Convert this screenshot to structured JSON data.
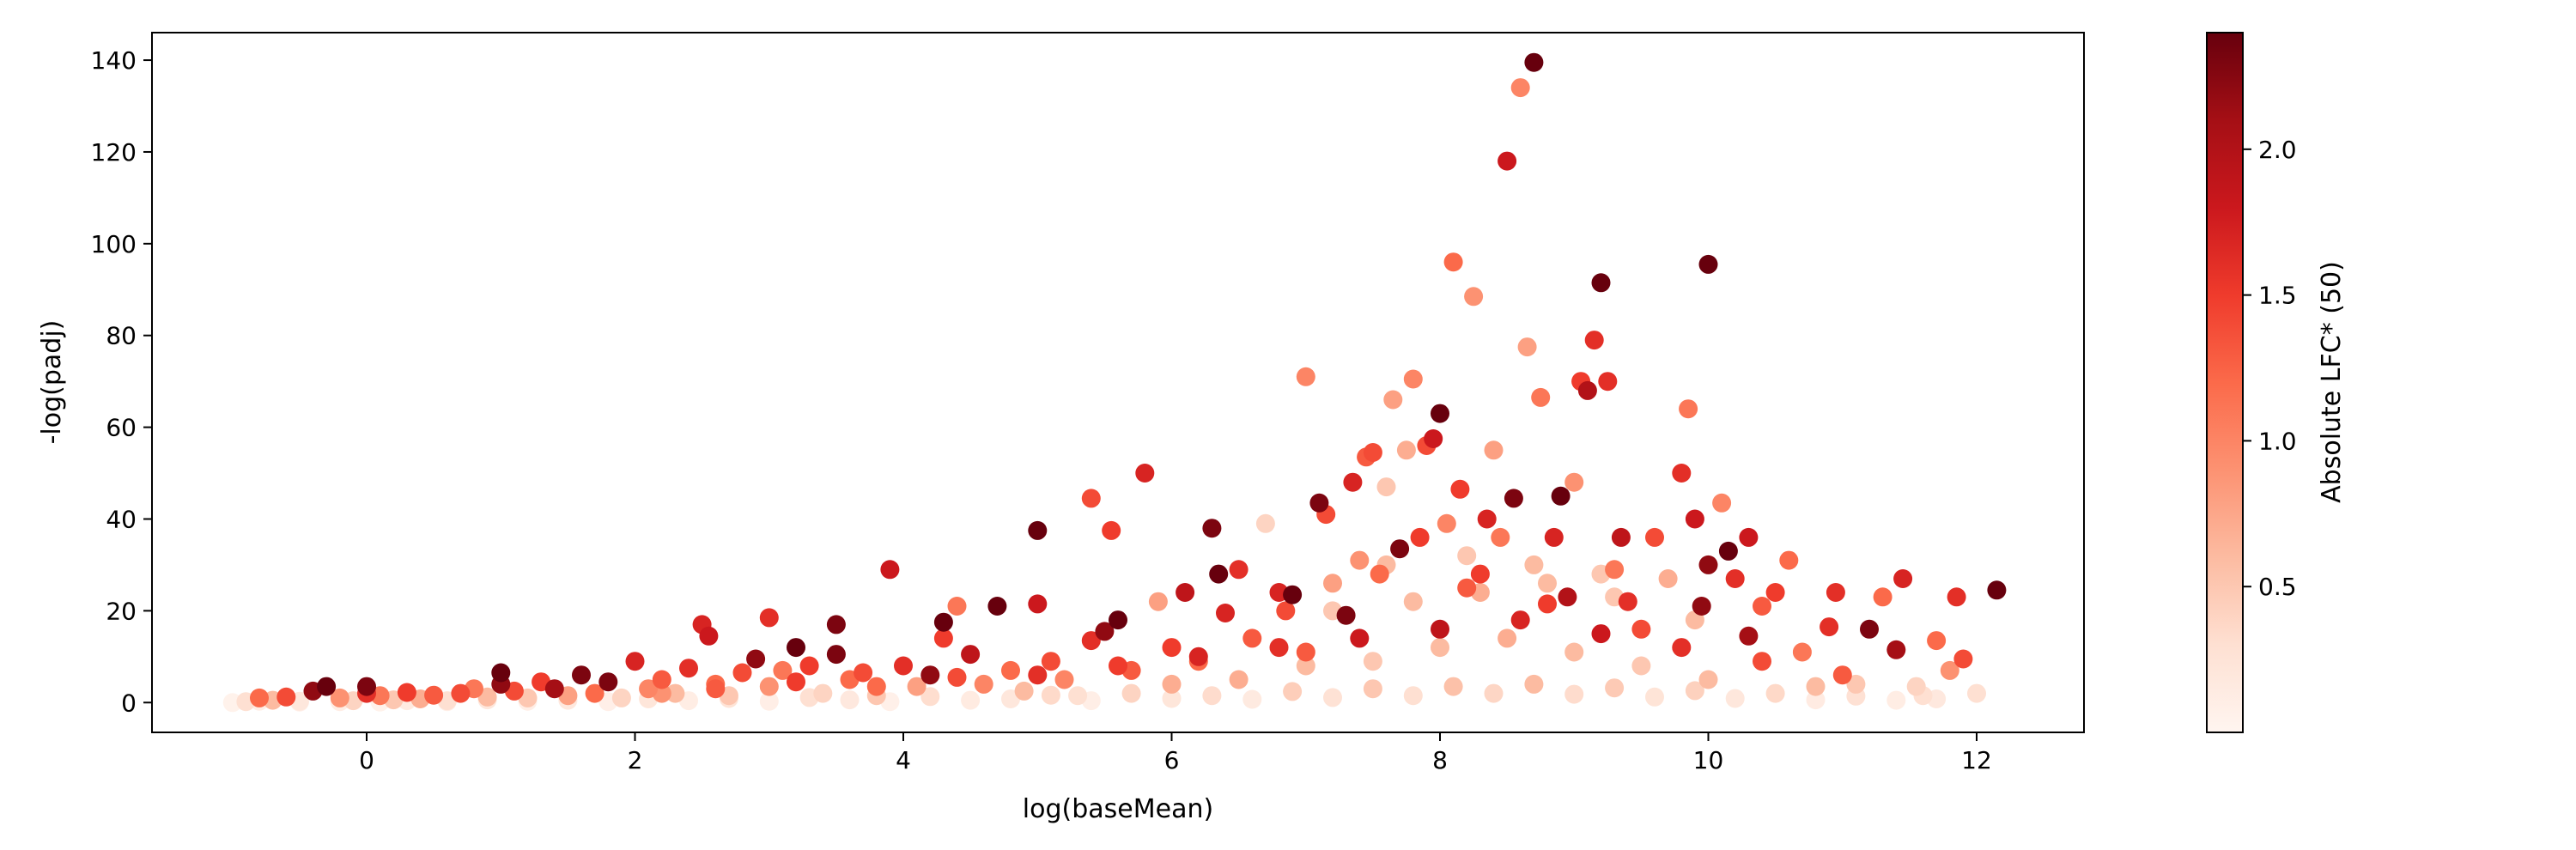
{
  "chart_data": {
    "type": "scatter",
    "xlabel": "log(baseMean)",
    "ylabel": "-log(padj)",
    "colorbar_label": "Absolute LFC* (50)",
    "colormap": "Reds",
    "colormap_stops": [
      "#fff5f0",
      "#fee0d2",
      "#fcbba1",
      "#fc9272",
      "#fb6a4a",
      "#ef3b2c",
      "#cb181d",
      "#a50f15",
      "#67000d"
    ],
    "xlim": [
      -1.6,
      12.8
    ],
    "ylim": [
      -6.5,
      146
    ],
    "clim": [
      0.0,
      2.4
    ],
    "xticks": [
      0,
      2,
      4,
      6,
      8,
      10,
      12
    ],
    "yticks": [
      0,
      20,
      40,
      60,
      80,
      100,
      120,
      140
    ],
    "cticks": [
      0.5,
      1.0,
      1.5,
      2.0
    ],
    "xtick_labels": [
      "0",
      "2",
      "4",
      "6",
      "8",
      "10",
      "12"
    ],
    "ytick_labels": [
      "0",
      "20",
      "40",
      "60",
      "80",
      "100",
      "120",
      "140"
    ],
    "ctick_labels": [
      "0.5",
      "1.0",
      "1.5",
      "2.0"
    ],
    "grid": false,
    "points": [
      [
        -0.9,
        0.2,
        0.3
      ],
      [
        -0.8,
        1.0,
        1.2
      ],
      [
        -0.7,
        0.5,
        0.6
      ],
      [
        -0.6,
        1.2,
        1.4
      ],
      [
        -0.5,
        0.3,
        0.2
      ],
      [
        -0.4,
        2.5,
        2.2
      ],
      [
        -0.3,
        3.5,
        2.4
      ],
      [
        -0.2,
        1.0,
        0.9
      ],
      [
        -0.1,
        0.4,
        0.4
      ],
      [
        0.0,
        2.0,
        1.6
      ],
      [
        0.0,
        3.5,
        2.3
      ],
      [
        0.1,
        1.5,
        1.1
      ],
      [
        0.2,
        0.6,
        0.5
      ],
      [
        0.3,
        2.2,
        1.5
      ],
      [
        0.4,
        0.8,
        0.7
      ],
      [
        0.5,
        1.6,
        1.3
      ],
      [
        0.6,
        0.4,
        0.3
      ],
      [
        0.7,
        2.0,
        1.4
      ],
      [
        0.8,
        3.0,
        1.1
      ],
      [
        0.9,
        1.2,
        0.6
      ],
      [
        1.0,
        6.5,
        2.4
      ],
      [
        1.0,
        4.0,
        2.2
      ],
      [
        1.1,
        2.5,
        1.4
      ],
      [
        1.2,
        1.0,
        0.5
      ],
      [
        1.3,
        4.5,
        1.5
      ],
      [
        1.4,
        3.0,
        2.1
      ],
      [
        1.5,
        1.5,
        0.8
      ],
      [
        1.6,
        6.0,
        2.3
      ],
      [
        1.7,
        2.0,
        1.2
      ],
      [
        1.8,
        4.5,
        2.3
      ],
      [
        1.9,
        1.0,
        0.4
      ],
      [
        2.0,
        9.0,
        1.7
      ],
      [
        2.1,
        3.0,
        1.0
      ],
      [
        2.2,
        5.0,
        1.3
      ],
      [
        2.3,
        2.0,
        0.6
      ],
      [
        2.4,
        7.5,
        1.6
      ],
      [
        2.5,
        17.0,
        1.7
      ],
      [
        2.55,
        14.5,
        1.8
      ],
      [
        2.6,
        4.0,
        1.2
      ],
      [
        2.7,
        1.5,
        0.5
      ],
      [
        2.8,
        6.5,
        1.4
      ],
      [
        2.9,
        9.5,
        2.2
      ],
      [
        3.0,
        18.5,
        1.6
      ],
      [
        3.0,
        3.5,
        0.9
      ],
      [
        3.1,
        7.0,
        1.1
      ],
      [
        3.2,
        12.0,
        2.4
      ],
      [
        3.3,
        8.0,
        1.5
      ],
      [
        3.4,
        2.0,
        0.4
      ],
      [
        3.5,
        17.0,
        2.3
      ],
      [
        3.5,
        10.5,
        2.3
      ],
      [
        3.6,
        5.0,
        1.2
      ],
      [
        3.7,
        6.5,
        1.4
      ],
      [
        3.8,
        1.5,
        0.5
      ],
      [
        3.9,
        29.0,
        1.8
      ],
      [
        4.0,
        8.0,
        1.6
      ],
      [
        4.1,
        3.5,
        0.8
      ],
      [
        4.2,
        6.0,
        2.2
      ],
      [
        4.3,
        17.5,
        2.4
      ],
      [
        4.3,
        14.0,
        1.5
      ],
      [
        4.4,
        21.0,
        1.1
      ],
      [
        4.5,
        10.5,
        1.9
      ],
      [
        4.6,
        4.0,
        1.0
      ],
      [
        4.7,
        21.0,
        2.4
      ],
      [
        4.8,
        7.0,
        1.2
      ],
      [
        4.9,
        2.5,
        0.6
      ],
      [
        5.0,
        37.5,
        2.4
      ],
      [
        5.0,
        21.5,
        1.8
      ],
      [
        5.1,
        9.0,
        1.4
      ],
      [
        5.2,
        5.0,
        1.0
      ],
      [
        5.3,
        1.5,
        0.3
      ],
      [
        5.4,
        44.5,
        1.4
      ],
      [
        5.4,
        13.5,
        1.6
      ],
      [
        5.5,
        15.5,
        2.2
      ],
      [
        5.55,
        37.5,
        1.5
      ],
      [
        5.6,
        18.0,
        2.4
      ],
      [
        5.7,
        7.0,
        1.3
      ],
      [
        5.8,
        50.0,
        1.7
      ],
      [
        5.9,
        22.0,
        0.8
      ],
      [
        6.0,
        12.0,
        1.5
      ],
      [
        6.0,
        4.0,
        0.7
      ],
      [
        6.1,
        24.0,
        1.9
      ],
      [
        6.2,
        9.0,
        1.2
      ],
      [
        6.3,
        38.0,
        2.3
      ],
      [
        6.35,
        28.0,
        2.4
      ],
      [
        6.4,
        19.5,
        1.7
      ],
      [
        6.5,
        29.0,
        1.6
      ],
      [
        6.6,
        14.0,
        1.3
      ],
      [
        6.7,
        39.0,
        0.4
      ],
      [
        6.8,
        24.0,
        1.7
      ],
      [
        6.85,
        20.0,
        1.4
      ],
      [
        6.9,
        23.5,
        2.4
      ],
      [
        7.0,
        71.0,
        1.0
      ],
      [
        7.0,
        11.0,
        1.3
      ],
      [
        7.1,
        43.5,
        2.3
      ],
      [
        7.15,
        41.0,
        1.4
      ],
      [
        7.2,
        26.0,
        0.8
      ],
      [
        7.3,
        19.0,
        2.3
      ],
      [
        7.35,
        48.0,
        1.7
      ],
      [
        7.4,
        31.0,
        0.9
      ],
      [
        7.45,
        53.5,
        1.3
      ],
      [
        7.5,
        54.5,
        1.4
      ],
      [
        7.55,
        28.0,
        1.2
      ],
      [
        7.6,
        47.0,
        0.5
      ],
      [
        7.65,
        66.0,
        0.8
      ],
      [
        7.7,
        33.5,
        2.3
      ],
      [
        7.75,
        55.0,
        0.7
      ],
      [
        7.8,
        70.5,
        1.0
      ],
      [
        7.85,
        36.0,
        1.5
      ],
      [
        7.9,
        56.0,
        1.4
      ],
      [
        7.95,
        57.5,
        1.8
      ],
      [
        8.0,
        63.0,
        2.4
      ],
      [
        8.05,
        39.0,
        1.0
      ],
      [
        8.1,
        96.0,
        1.2
      ],
      [
        8.15,
        46.5,
        1.5
      ],
      [
        8.2,
        25.0,
        1.3
      ],
      [
        8.25,
        88.5,
        0.9
      ],
      [
        8.3,
        28.0,
        1.5
      ],
      [
        8.35,
        40.0,
        1.7
      ],
      [
        8.4,
        55.0,
        0.8
      ],
      [
        8.45,
        36.0,
        1.1
      ],
      [
        8.5,
        118.0,
        1.8
      ],
      [
        8.55,
        44.5,
        2.3
      ],
      [
        8.6,
        134.0,
        1.0
      ],
      [
        8.65,
        77.5,
        0.8
      ],
      [
        8.7,
        139.5,
        2.4
      ],
      [
        8.75,
        66.5,
        1.1
      ],
      [
        8.8,
        21.5,
        1.5
      ],
      [
        8.85,
        36.0,
        1.7
      ],
      [
        8.9,
        45.0,
        2.4
      ],
      [
        8.95,
        23.0,
        2.0
      ],
      [
        9.0,
        48.0,
        0.9
      ],
      [
        9.05,
        70.0,
        1.5
      ],
      [
        9.1,
        68.0,
        2.0
      ],
      [
        9.15,
        79.0,
        1.6
      ],
      [
        9.2,
        91.5,
        2.4
      ],
      [
        9.25,
        70.0,
        1.6
      ],
      [
        9.3,
        29.0,
        1.1
      ],
      [
        9.35,
        36.0,
        1.9
      ],
      [
        9.4,
        22.0,
        1.6
      ],
      [
        9.5,
        16.0,
        1.4
      ],
      [
        9.6,
        36.0,
        1.4
      ],
      [
        9.7,
        27.0,
        0.7
      ],
      [
        9.8,
        50.0,
        1.6
      ],
      [
        9.85,
        64.0,
        1.1
      ],
      [
        9.9,
        40.0,
        1.8
      ],
      [
        9.95,
        21.0,
        2.2
      ],
      [
        10.0,
        95.5,
        2.4
      ],
      [
        10.0,
        30.0,
        2.2
      ],
      [
        10.1,
        43.5,
        1.0
      ],
      [
        10.15,
        33.0,
        2.4
      ],
      [
        10.2,
        27.0,
        1.6
      ],
      [
        10.3,
        36.0,
        1.8
      ],
      [
        10.3,
        14.5,
        2.1
      ],
      [
        10.4,
        21.0,
        1.3
      ],
      [
        10.5,
        24.0,
        1.5
      ],
      [
        10.6,
        31.0,
        1.2
      ],
      [
        10.7,
        11.0,
        1.1
      ],
      [
        10.8,
        3.5,
        0.6
      ],
      [
        10.9,
        16.5,
        1.6
      ],
      [
        10.95,
        24.0,
        1.6
      ],
      [
        11.1,
        4.0,
        0.5
      ],
      [
        11.2,
        16.0,
        2.3
      ],
      [
        11.3,
        23.0,
        1.2
      ],
      [
        11.4,
        11.5,
        2.1
      ],
      [
        11.45,
        27.0,
        1.7
      ],
      [
        11.55,
        3.5,
        0.4
      ],
      [
        11.6,
        1.5,
        0.3
      ],
      [
        11.7,
        13.5,
        1.2
      ],
      [
        11.8,
        7.0,
        0.9
      ],
      [
        11.85,
        23.0,
        1.6
      ],
      [
        11.9,
        9.5,
        1.4
      ],
      [
        12.15,
        24.5,
        2.4
      ],
      [
        12.0,
        2.0,
        0.3
      ],
      [
        -1.0,
        0.0,
        0.05
      ],
      [
        -0.8,
        0.3,
        0.1
      ],
      [
        -0.5,
        0.1,
        0.08
      ],
      [
        -0.2,
        0.2,
        0.12
      ],
      [
        0.1,
        0.1,
        0.05
      ],
      [
        0.3,
        0.4,
        0.15
      ],
      [
        0.6,
        0.2,
        0.1
      ],
      [
        0.9,
        0.6,
        0.2
      ],
      [
        1.2,
        0.3,
        0.1
      ],
      [
        1.5,
        0.5,
        0.18
      ],
      [
        1.8,
        0.2,
        0.08
      ],
      [
        2.1,
        0.8,
        0.22
      ],
      [
        2.4,
        0.4,
        0.12
      ],
      [
        2.7,
        0.9,
        0.25
      ],
      [
        3.0,
        0.3,
        0.1
      ],
      [
        3.3,
        1.1,
        0.3
      ],
      [
        3.6,
        0.6,
        0.18
      ],
      [
        3.9,
        0.2,
        0.07
      ],
      [
        4.2,
        1.3,
        0.32
      ],
      [
        4.5,
        0.5,
        0.15
      ],
      [
        4.8,
        0.8,
        0.2
      ],
      [
        5.1,
        1.6,
        0.35
      ],
      [
        5.4,
        0.4,
        0.1
      ],
      [
        5.7,
        2.0,
        0.4
      ],
      [
        6.0,
        0.9,
        0.22
      ],
      [
        6.3,
        1.5,
        0.33
      ],
      [
        6.6,
        0.7,
        0.16
      ],
      [
        6.9,
        2.4,
        0.45
      ],
      [
        7.2,
        1.1,
        0.27
      ],
      [
        7.5,
        3.0,
        0.5
      ],
      [
        7.8,
        1.5,
        0.3
      ],
      [
        8.1,
        3.5,
        0.55
      ],
      [
        8.4,
        2.0,
        0.38
      ],
      [
        8.7,
        4.0,
        0.6
      ],
      [
        9.0,
        1.8,
        0.33
      ],
      [
        9.3,
        3.2,
        0.48
      ],
      [
        9.6,
        1.2,
        0.25
      ],
      [
        9.9,
        2.6,
        0.42
      ],
      [
        10.2,
        0.9,
        0.2
      ],
      [
        10.5,
        2.0,
        0.36
      ],
      [
        10.8,
        0.6,
        0.14
      ],
      [
        11.1,
        1.4,
        0.28
      ],
      [
        11.4,
        0.5,
        0.12
      ],
      [
        11.7,
        0.8,
        0.18
      ],
      [
        2.2,
        2.0,
        0.9
      ],
      [
        2.6,
        3.0,
        1.3
      ],
      [
        3.2,
        4.5,
        1.5
      ],
      [
        3.8,
        3.5,
        1.2
      ],
      [
        4.4,
        5.5,
        1.4
      ],
      [
        5.0,
        6.0,
        1.6
      ],
      [
        5.6,
        8.0,
        1.5
      ],
      [
        6.2,
        10.0,
        1.7
      ],
      [
        6.8,
        12.0,
        1.6
      ],
      [
        7.4,
        14.0,
        1.8
      ],
      [
        8.0,
        16.0,
        1.9
      ],
      [
        8.6,
        18.0,
        1.7
      ],
      [
        9.2,
        15.0,
        1.8
      ],
      [
        9.8,
        12.0,
        1.6
      ],
      [
        10.4,
        9.0,
        1.4
      ],
      [
        11.0,
        6.0,
        1.3
      ],
      [
        6.5,
        5.0,
        0.7
      ],
      [
        7.0,
        8.0,
        0.6
      ],
      [
        7.5,
        9.0,
        0.5
      ],
      [
        8.0,
        12.0,
        0.6
      ],
      [
        8.5,
        14.0,
        0.7
      ],
      [
        9.0,
        11.0,
        0.6
      ],
      [
        9.5,
        8.0,
        0.5
      ],
      [
        10.0,
        5.0,
        0.6
      ],
      [
        7.2,
        20.0,
        0.5
      ],
      [
        7.8,
        22.0,
        0.6
      ],
      [
        8.3,
        24.0,
        0.7
      ],
      [
        8.8,
        26.0,
        0.6
      ],
      [
        9.3,
        23.0,
        0.5
      ],
      [
        9.9,
        18.0,
        0.6
      ],
      [
        7.6,
        30.0,
        0.6
      ],
      [
        8.2,
        32.0,
        0.5
      ],
      [
        8.7,
        30.0,
        0.6
      ],
      [
        9.2,
        28.0,
        0.5
      ]
    ]
  }
}
